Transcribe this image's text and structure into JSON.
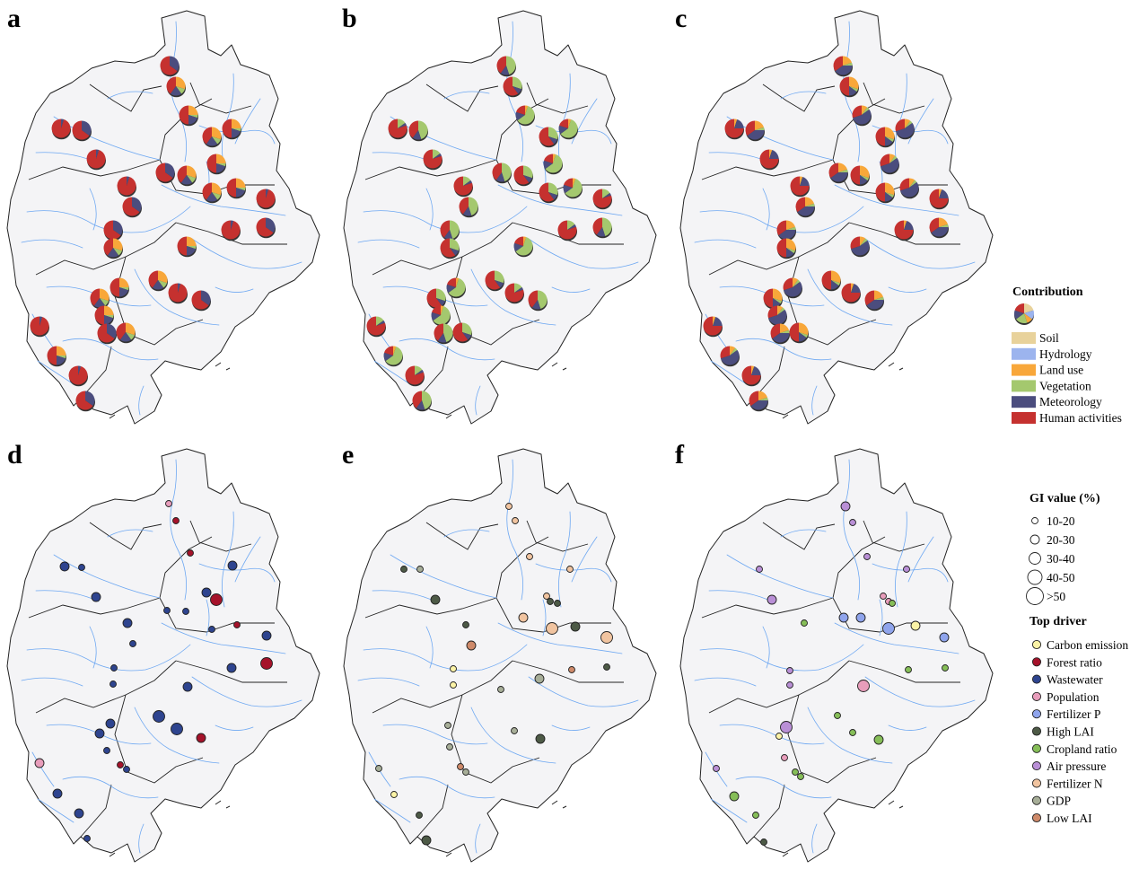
{
  "panels": [
    {
      "label": "a",
      "type": "pie"
    },
    {
      "label": "b",
      "type": "pie"
    },
    {
      "label": "c",
      "type": "pie"
    },
    {
      "label": "d",
      "type": "dot"
    },
    {
      "label": "e",
      "type": "dot"
    },
    {
      "label": "f",
      "type": "dot"
    }
  ],
  "contribution_legend": {
    "title": "Contribution",
    "items": [
      {
        "label": "Soil",
        "color": "#E8D29B"
      },
      {
        "label": "Hydrology",
        "color": "#9CB4EE"
      },
      {
        "label": "Land use",
        "color": "#F8A73A"
      },
      {
        "label": "Vegetation",
        "color": "#A4C86E"
      },
      {
        "label": "Meteorology",
        "color": "#4B4D7E"
      },
      {
        "label": "Human activities",
        "color": "#C5312F"
      }
    ]
  },
  "gi_legend": {
    "title": "GI value (%)",
    "items": [
      "10-20",
      "20-30",
      "30-40",
      "40-50",
      ">50"
    ]
  },
  "driver_legend": {
    "title": "Top driver",
    "items": [
      {
        "label": "Carbon emission",
        "color": "#FBF3A6"
      },
      {
        "label": "Forest ratio",
        "color": "#A5122A"
      },
      {
        "label": "Wastewater",
        "color": "#2E448F"
      },
      {
        "label": "Population",
        "color": "#E89DBB"
      },
      {
        "label": "Fertilizer P",
        "color": "#8FA4EC"
      },
      {
        "label": "High LAI",
        "color": "#4D5A46"
      },
      {
        "label": "Cropland ratio",
        "color": "#86BE58"
      },
      {
        "label": "Air pressure",
        "color": "#B98FD6"
      },
      {
        "label": "Fertilizer N",
        "color": "#F1C4A0"
      },
      {
        "label": "GDP",
        "color": "#A7AE98"
      },
      {
        "label": "Low LAI",
        "color": "#CF8A6A"
      }
    ]
  },
  "map_colors": {
    "land": "#F4F4F6",
    "boundary": "#222222",
    "river": "#6EA8F2"
  }
}
